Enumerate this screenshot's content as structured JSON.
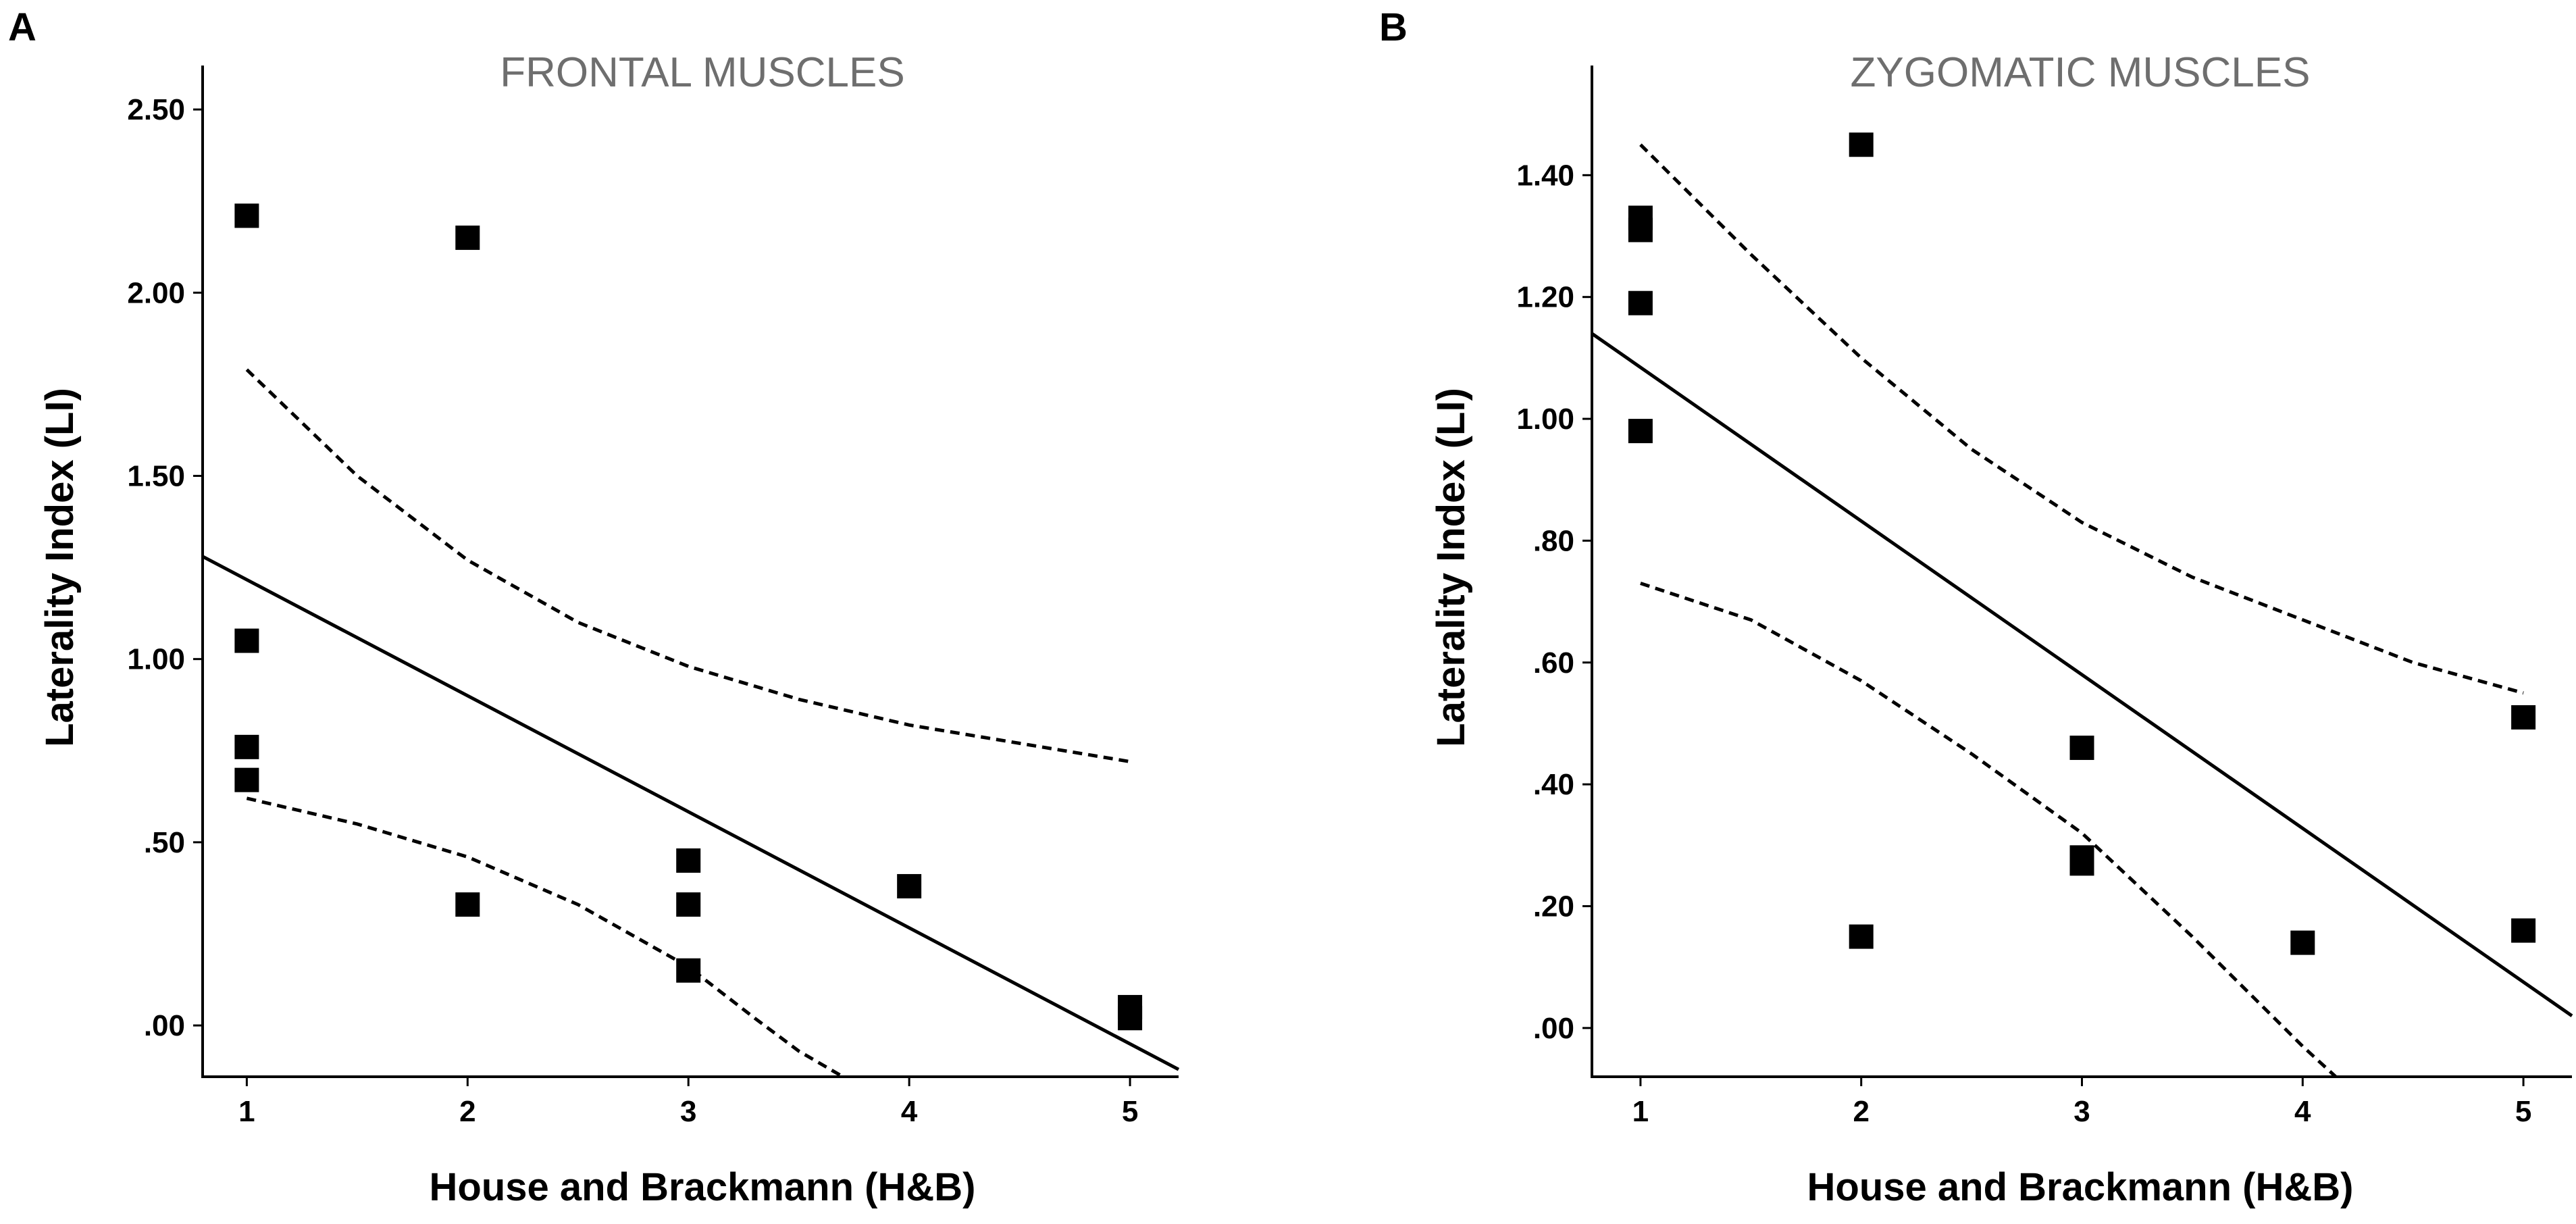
{
  "chart_data": [
    {
      "panel_label": "A",
      "type": "scatter",
      "title": "FRONTAL MUSCLES",
      "xlabel": "House and Brackmann (H&B)",
      "ylabel": "Laterality Index (LI)",
      "xlim": [
        0.8,
        5.22
      ],
      "ylim": [
        -0.14,
        2.62
      ],
      "x_ticks": [
        1,
        2,
        3,
        4,
        5
      ],
      "x_tick_labels": [
        "1",
        "2",
        "3",
        "4",
        "5"
      ],
      "y_ticks": [
        0,
        0.5,
        1.0,
        1.5,
        2.0,
        2.5
      ],
      "y_tick_labels": [
        ".00",
        ".50",
        "1.00",
        "1.50",
        "2.00",
        "2.50"
      ],
      "points": [
        {
          "x": 1,
          "y": 2.21
        },
        {
          "x": 1,
          "y": 1.05
        },
        {
          "x": 1,
          "y": 0.76
        },
        {
          "x": 1,
          "y": 0.67
        },
        {
          "x": 2,
          "y": 2.15
        },
        {
          "x": 2,
          "y": 0.33
        },
        {
          "x": 3,
          "y": 0.45
        },
        {
          "x": 3,
          "y": 0.33
        },
        {
          "x": 3,
          "y": 0.15
        },
        {
          "x": 4,
          "y": 0.38
        },
        {
          "x": 5,
          "y": 0.05
        },
        {
          "x": 5,
          "y": 0.02
        }
      ],
      "fit_line": {
        "x": [
          0.8,
          5.22
        ],
        "y": [
          1.28,
          -0.12
        ]
      },
      "ci_upper": {
        "x": [
          1,
          1.5,
          2,
          2.5,
          3,
          3.5,
          4,
          4.5,
          5
        ],
        "y": [
          1.79,
          1.5,
          1.27,
          1.1,
          0.98,
          0.89,
          0.82,
          0.77,
          0.72
        ]
      },
      "ci_lower": {
        "x": [
          1,
          1.5,
          2,
          2.5,
          3,
          3.3,
          3.5,
          3.7
        ],
        "y": [
          0.62,
          0.55,
          0.46,
          0.33,
          0.16,
          0.02,
          -0.07,
          -0.14
        ]
      }
    },
    {
      "panel_label": "B",
      "type": "scatter",
      "title": "ZYGOMATIC MUSCLES",
      "xlabel": "House and Brackmann (H&B)",
      "ylabel": "Laterality Index (LI)",
      "xlim": [
        0.78,
        5.22
      ],
      "ylim": [
        -0.08,
        1.58
      ],
      "x_ticks": [
        1,
        2,
        3,
        4,
        5
      ],
      "x_tick_labels": [
        "1",
        "2",
        "3",
        "4",
        "5"
      ],
      "y_ticks": [
        0,
        0.2,
        0.4,
        0.6,
        0.8,
        1.0,
        1.2,
        1.4
      ],
      "y_tick_labels": [
        ".00",
        ".20",
        ".40",
        ".60",
        ".80",
        "1.00",
        "1.20",
        "1.40"
      ],
      "points": [
        {
          "x": 1,
          "y": 1.33
        },
        {
          "x": 1,
          "y": 1.31
        },
        {
          "x": 1,
          "y": 1.19
        },
        {
          "x": 1,
          "y": 0.98
        },
        {
          "x": 2,
          "y": 1.45
        },
        {
          "x": 2,
          "y": 0.15
        },
        {
          "x": 3,
          "y": 0.46
        },
        {
          "x": 3,
          "y": 0.28
        },
        {
          "x": 3,
          "y": 0.27
        },
        {
          "x": 4,
          "y": 0.14
        },
        {
          "x": 5,
          "y": 0.51
        },
        {
          "x": 5,
          "y": 0.16
        }
      ],
      "fit_line": {
        "x": [
          0.78,
          5.22
        ],
        "y": [
          1.14,
          0.02
        ]
      },
      "ci_upper": {
        "x": [
          1,
          1.5,
          2,
          2.5,
          3,
          3.5,
          4,
          4.5,
          5
        ],
        "y": [
          1.45,
          1.27,
          1.1,
          0.95,
          0.83,
          0.74,
          0.67,
          0.6,
          0.55
        ]
      },
      "ci_lower": {
        "x": [
          1,
          1.5,
          2,
          2.5,
          3,
          3.5,
          4,
          4.15
        ],
        "y": [
          0.73,
          0.67,
          0.57,
          0.45,
          0.32,
          0.15,
          -0.03,
          -0.08
        ]
      }
    }
  ]
}
